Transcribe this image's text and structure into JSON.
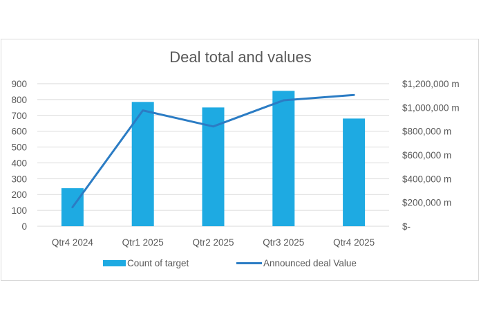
{
  "chart_data": {
    "type": "bar+line",
    "title": "Deal total and values",
    "categories": [
      "Qtr4 2024",
      "Qtr1 2025",
      "Qtr2 2025",
      "Qtr3 2025",
      "Qtr4 2025"
    ],
    "series": [
      {
        "name": "Count of target",
        "type": "bar",
        "axis": "left",
        "color": "#1eaae2",
        "values": [
          240,
          785,
          750,
          855,
          680
        ]
      },
      {
        "name": "Announced deal Value",
        "type": "line",
        "axis": "right",
        "color": "#2b7cc4",
        "values": [
          160000,
          975000,
          840000,
          1060000,
          1105000
        ]
      }
    ],
    "left_axis": {
      "ylim": [
        0,
        900
      ],
      "ticks": [
        "0",
        "100",
        "200",
        "300",
        "400",
        "500",
        "600",
        "700",
        "800",
        "900"
      ]
    },
    "right_axis": {
      "ylim": [
        0,
        1200000
      ],
      "ticks": [
        "$-",
        "$200,000 m",
        "$400,000 m",
        "$600,000 m",
        "$800,000 m",
        "$1,000,000 m",
        "$1,200,000 m"
      ]
    },
    "xlabel": "",
    "ylabel": "",
    "grid": true,
    "legend_position": "bottom"
  }
}
